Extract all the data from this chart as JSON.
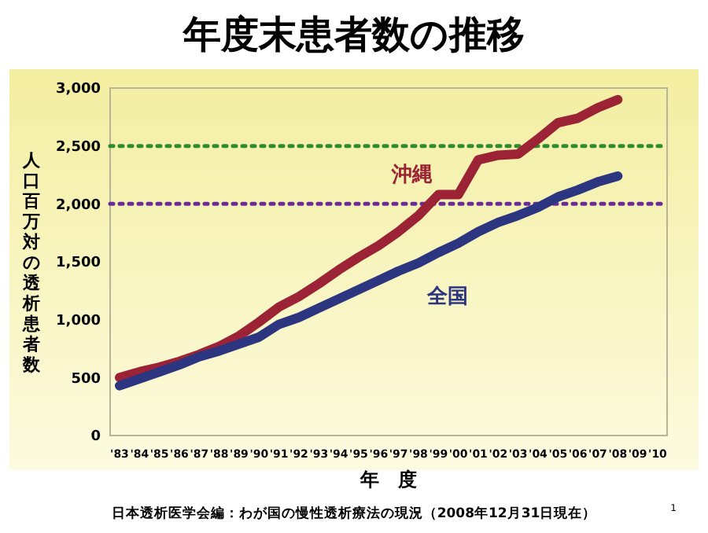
{
  "chart_data": {
    "type": "line",
    "title": "年度末患者数の推移",
    "xlabel": "年　度",
    "ylabel": "人口百万対の透析患者数",
    "categories": [
      "'83",
      "'84",
      "'85",
      "'86",
      "'87",
      "'88",
      "'89",
      "'90",
      "'91",
      "'92",
      "'93",
      "'94",
      "'95",
      "'96",
      "'97",
      "'98",
      "'99",
      "'00",
      "'01",
      "'02",
      "'03",
      "'04",
      "'05",
      "'06",
      "'07",
      "'08",
      "'09",
      "'10"
    ],
    "series": [
      {
        "name": "沖縄",
        "color": "#9b2335",
        "values": [
          500,
          550,
          590,
          640,
          700,
          770,
          860,
          980,
          1110,
          1200,
          1310,
          1430,
          1540,
          1640,
          1760,
          1900,
          2080,
          2080,
          2380,
          2420,
          2430,
          2560,
          2700,
          2740,
          2830,
          2900,
          null,
          null
        ]
      },
      {
        "name": "全国",
        "color": "#2b3580",
        "values": [
          430,
          490,
          550,
          610,
          680,
          730,
          790,
          850,
          960,
          1020,
          1100,
          1180,
          1260,
          1340,
          1420,
          1490,
          1580,
          1660,
          1760,
          1840,
          1900,
          1970,
          2060,
          2120,
          2190,
          2240,
          null,
          null
        ]
      }
    ],
    "ylim": [
      0,
      3000
    ],
    "yticks": [
      0,
      {
        "value": 500,
        "label": "500"
      },
      {
        "value": 1000,
        "label": "1,000"
      },
      {
        "value": 1500,
        "label": "1,500"
      },
      {
        "value": 2000,
        "label": "2,000"
      },
      {
        "value": 2500,
        "label": "2,500"
      },
      {
        "value": 3000,
        "label": "3,000"
      }
    ],
    "ref_lines": [
      {
        "axis": "y",
        "value": 2500,
        "color": "#2e8b2e",
        "line_style": "dotted"
      },
      {
        "axis": "y",
        "value": 2000,
        "color": "#6a2a9a",
        "line_style": "dotted"
      }
    ],
    "grid": false,
    "marker": "none",
    "line_style": "solid",
    "annotations": [
      "日本透析医学会編：わが国の慢性透析療法の現況（2008年12月31日現在）",
      "1"
    ]
  }
}
